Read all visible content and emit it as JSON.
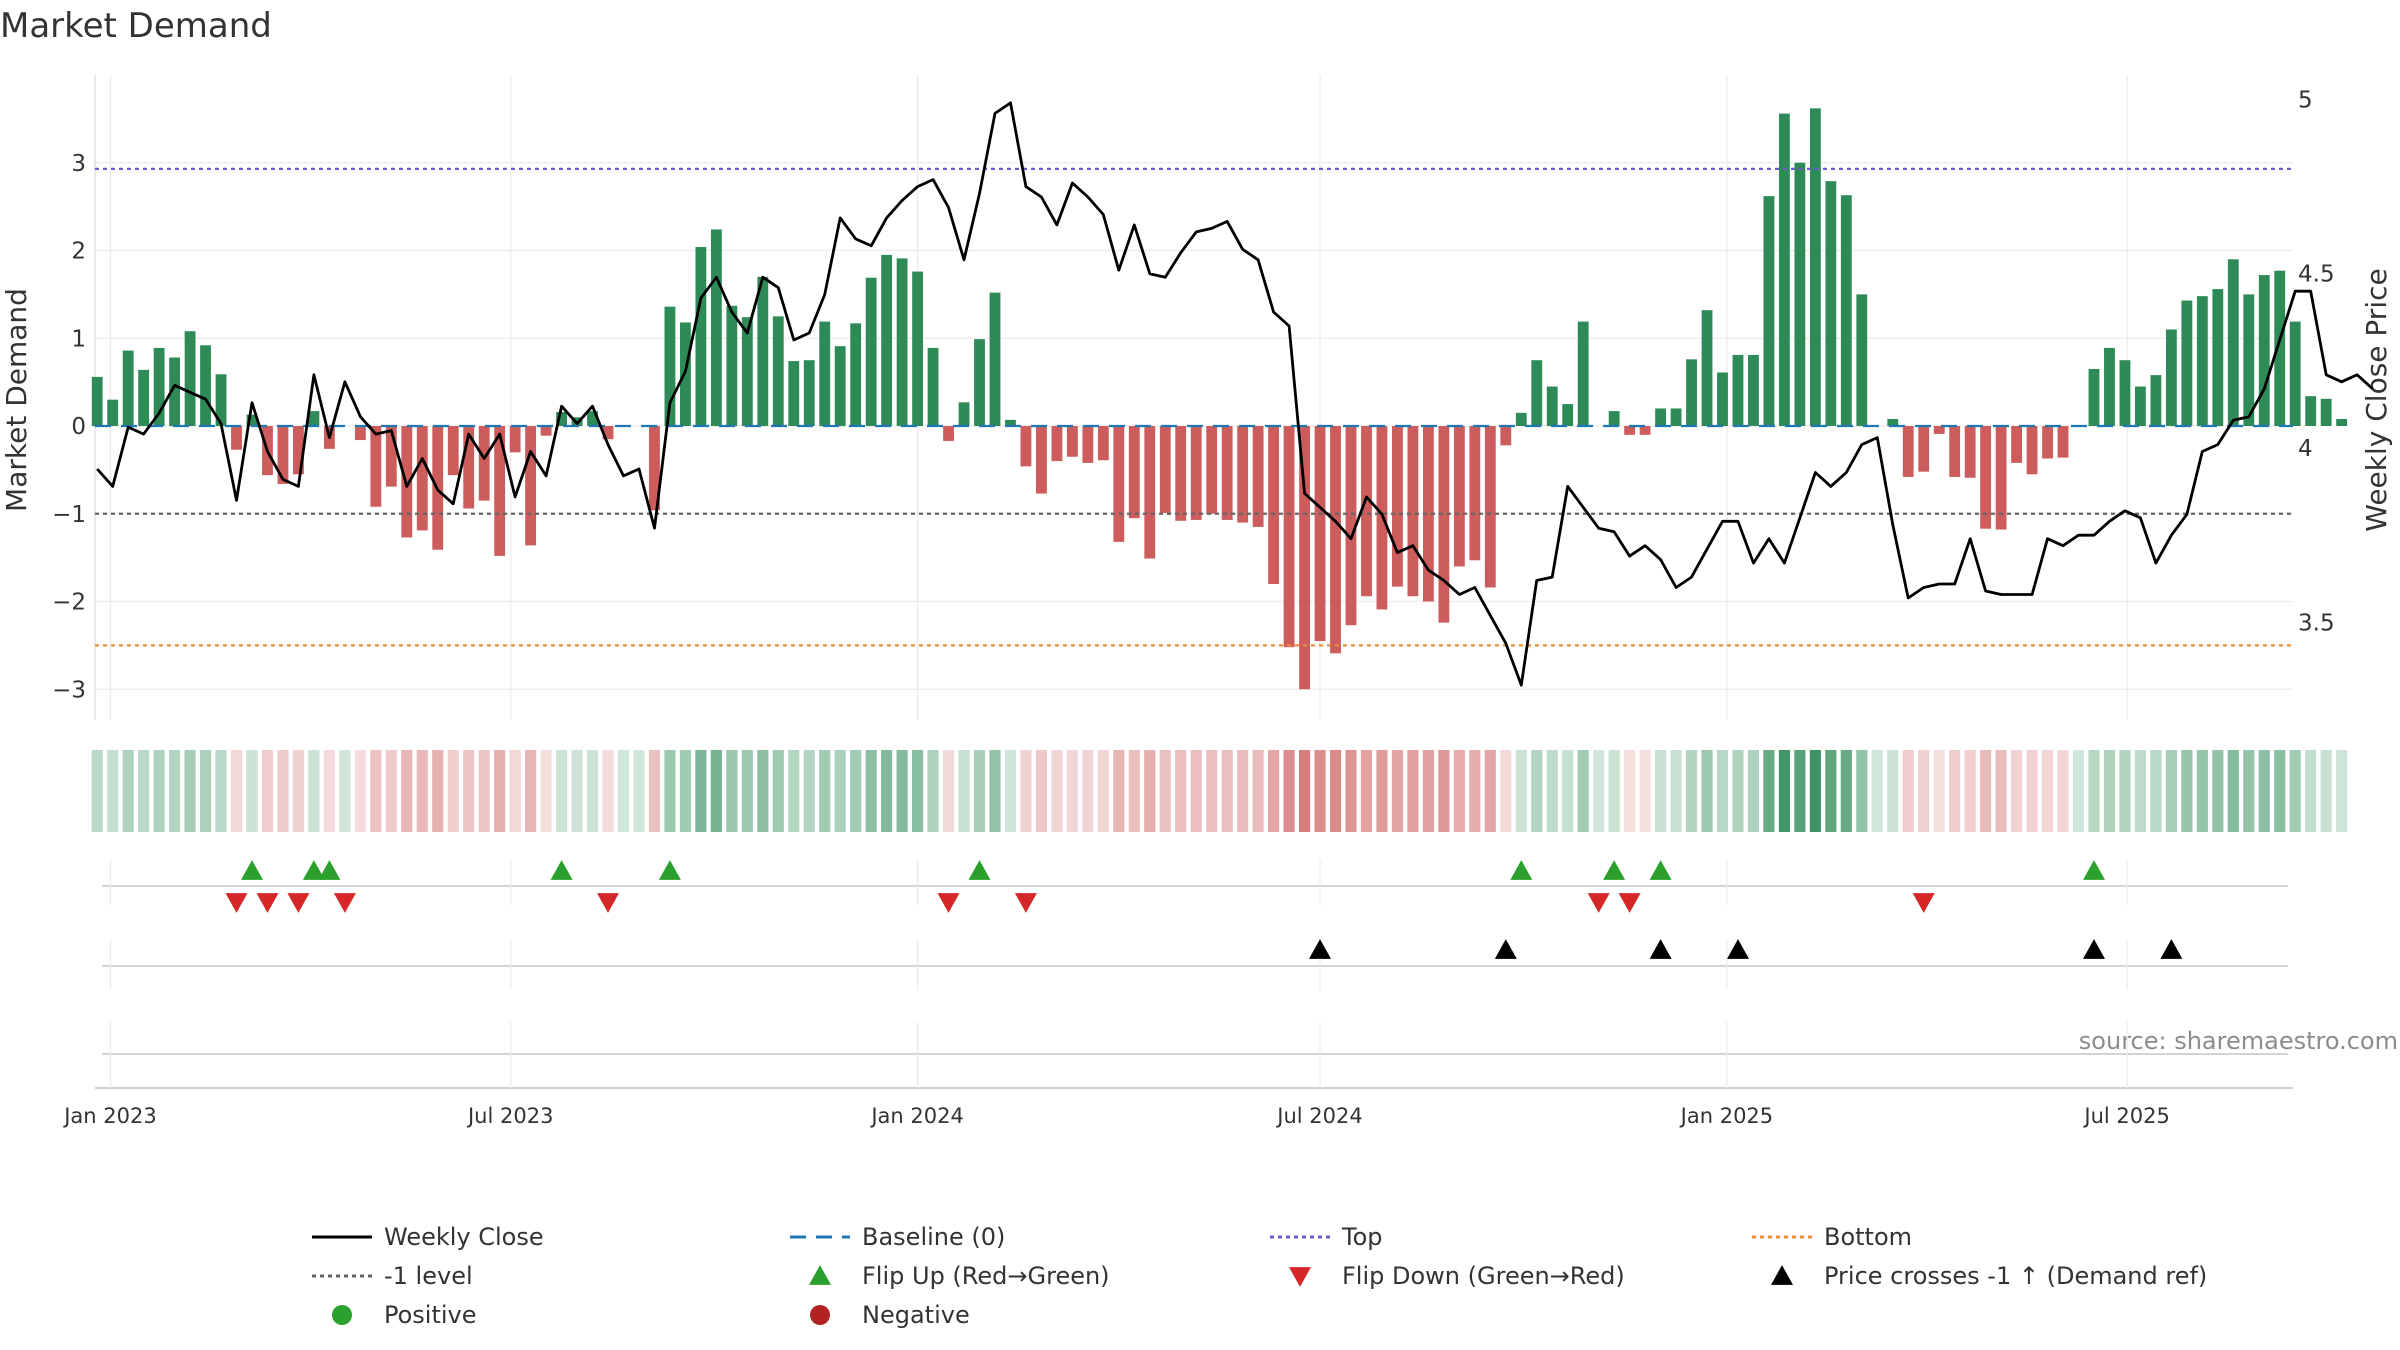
{
  "colors": {
    "pos_bar": "#2e8b57",
    "neg_bar": "#cd5c5c",
    "price_line": "#000000",
    "baseline": "#1f77b4",
    "top_line": "#6a5acd",
    "bottom_line": "#e69138",
    "neg_one": "#666666",
    "flip_up": "#2ca02c",
    "flip_down": "#d62728",
    "cross": "#000000",
    "positive_dot": "#2ca02c",
    "negative_dot": "#b22222"
  },
  "chart_data": {
    "type": "bar",
    "title": "Market Demand",
    "ylabel_left": "Market Demand",
    "ylabel_right": "Weekly Close Price",
    "source": "source: sharemaestro.com",
    "ylim_left": [
      -3.35,
      4.0
    ],
    "yticks_left": [
      3,
      2,
      1,
      0,
      -1,
      -2,
      -3
    ],
    "ytick_labels_left": [
      "3",
      "2",
      "1",
      "0",
      "−1",
      "−2",
      "−3"
    ],
    "ylim_right": [
      3.22,
      5.07
    ],
    "yticks_right": [
      5,
      4.5,
      4,
      3.5
    ],
    "ytick_labels_right": [
      "5",
      "4.5",
      "4",
      "3.5"
    ],
    "x_start": "2022-12-25",
    "x_end": "2025-09-14",
    "xticks": [
      {
        "date": "2023-01-01",
        "label": "Jan 2023"
      },
      {
        "date": "2023-07-01",
        "label": "Jul 2023"
      },
      {
        "date": "2024-01-01",
        "label": "Jan 2024"
      },
      {
        "date": "2024-07-01",
        "label": "Jul 2024"
      },
      {
        "date": "2025-01-01",
        "label": "Jan 2025"
      },
      {
        "date": "2025-07-01",
        "label": "Jul 2025"
      }
    ],
    "first_week": "2022-12-26",
    "levels": {
      "top": 2.93,
      "bottom": -2.5,
      "neg_one": -1.0,
      "baseline": 0
    },
    "demand": [
      0.56,
      0.3,
      0.86,
      0.64,
      0.89,
      0.78,
      1.08,
      0.92,
      0.59,
      -0.27,
      0.13,
      -0.56,
      -0.66,
      -0.55,
      0.17,
      -0.26,
      0,
      -0.16,
      -0.92,
      -0.69,
      -1.27,
      -1.19,
      -1.41,
      -0.56,
      -0.94,
      -0.85,
      -1.48,
      -0.3,
      -1.36,
      -0.11,
      0.16,
      0.1,
      0.17,
      -0.15,
      0,
      0,
      -0.96,
      1.36,
      1.18,
      2.04,
      2.24,
      1.37,
      1.24,
      1.7,
      1.25,
      0.74,
      0.75,
      1.19,
      0.91,
      1.17,
      1.69,
      1.95,
      1.91,
      1.76,
      0.89,
      -0.17,
      0.27,
      0.99,
      1.52,
      0.07,
      -0.46,
      -0.77,
      -0.4,
      -0.35,
      -0.42,
      -0.39,
      -1.32,
      -1.05,
      -1.51,
      -0.99,
      -1.08,
      -1.07,
      -1.0,
      -1.07,
      -1.1,
      -1.15,
      -1.8,
      -2.52,
      -3.0,
      -2.45,
      -2.59,
      -2.27,
      -1.94,
      -2.09,
      -1.83,
      -1.94,
      -2.0,
      -2.24,
      -1.6,
      -1.53,
      -1.84,
      -0.22,
      0.15,
      0.75,
      0.45,
      0.25,
      1.19,
      0,
      0.17,
      -0.1,
      -0.1,
      0.2,
      0.2,
      0.76,
      1.32,
      0.61,
      0.81,
      0.81,
      2.62,
      3.56,
      3.0,
      3.62,
      2.79,
      2.63,
      1.5,
      0,
      0.08,
      -0.58,
      -0.52,
      -0.09,
      -0.58,
      -0.59,
      -1.17,
      -1.18,
      -0.42,
      -0.55,
      -0.37,
      -0.36,
      0,
      0.65,
      0.89,
      0.75,
      0.45,
      0.58,
      1.1,
      1.43,
      1.48,
      1.56,
      1.9,
      1.5,
      1.72,
      1.77,
      1.19,
      0.34,
      0.31,
      0.08
    ],
    "price": [
      3.94,
      3.89,
      4.06,
      4.04,
      4.1,
      4.18,
      4.16,
      4.14,
      4.07,
      3.85,
      4.13,
      3.99,
      3.91,
      3.89,
      4.21,
      4.03,
      4.19,
      4.09,
      4.04,
      4.05,
      3.89,
      3.97,
      3.88,
      3.84,
      4.04,
      3.97,
      4.04,
      3.86,
      3.99,
      3.92,
      4.12,
      4.07,
      4.12,
      4.01,
      3.92,
      3.94,
      3.77,
      4.13,
      4.22,
      4.43,
      4.49,
      4.39,
      4.33,
      4.49,
      4.46,
      4.31,
      4.33,
      4.44,
      4.66,
      4.6,
      4.58,
      4.66,
      4.71,
      4.75,
      4.77,
      4.69,
      4.54,
      4.73,
      4.96,
      4.99,
      4.75,
      4.72,
      4.64,
      4.76,
      4.72,
      4.67,
      4.51,
      4.64,
      4.5,
      4.49,
      4.56,
      4.62,
      4.63,
      4.65,
      4.57,
      4.54,
      4.39,
      4.35,
      3.87,
      3.83,
      3.79,
      3.74,
      3.86,
      3.81,
      3.7,
      3.72,
      3.65,
      3.62,
      3.58,
      3.6,
      3.52,
      3.44,
      3.32,
      3.62,
      3.63,
      3.89,
      3.83,
      3.77,
      3.76,
      3.69,
      3.72,
      3.68,
      3.6,
      3.63,
      3.71,
      3.79,
      3.79,
      3.67,
      3.74,
      3.67,
      3.8,
      3.93,
      3.89,
      3.93,
      4.01,
      4.03,
      3.78,
      3.57,
      3.6,
      3.61,
      3.61,
      3.74,
      3.59,
      3.58,
      3.58,
      3.58,
      3.74,
      3.72,
      3.75,
      3.75,
      3.79,
      3.82,
      3.8,
      3.67,
      3.75,
      3.81,
      3.99,
      4.01,
      4.08,
      4.09,
      4.17,
      4.31,
      4.45,
      4.45,
      4.21,
      4.19,
      4.21,
      4.17
    ],
    "flip_up_weeks": [
      10,
      14,
      15,
      30,
      37,
      57,
      92,
      98,
      101,
      129
    ],
    "flip_down_weeks": [
      9,
      11,
      13,
      16,
      33,
      55,
      60,
      97,
      99,
      118
    ],
    "cross_weeks": [
      79,
      91,
      101,
      106,
      129,
      134
    ],
    "legend": [
      {
        "label": "Weekly Close",
        "kind": "line",
        "color_key": "price_line",
        "dash": ""
      },
      {
        "label": "Baseline (0)",
        "kind": "line",
        "color_key": "baseline",
        "dash": "16,10"
      },
      {
        "label": "Top",
        "kind": "line",
        "color_key": "top_line",
        "dash": "4,4"
      },
      {
        "label": "Bottom",
        "kind": "line",
        "color_key": "bottom_line",
        "dash": "4,4"
      },
      {
        "label": "-1 level",
        "kind": "line",
        "color_key": "neg_one",
        "dash": "4,4"
      },
      {
        "label": "Flip Up (Red→Green)",
        "kind": "up",
        "color_key": "flip_up",
        "dash": ""
      },
      {
        "label": "Flip Down (Green→Red)",
        "kind": "down",
        "color_key": "flip_down",
        "dash": ""
      },
      {
        "label": "Price crosses -1 ↑ (Demand ref)",
        "kind": "up",
        "color_key": "cross",
        "dash": ""
      },
      {
        "label": "Positive",
        "kind": "dot",
        "color_key": "positive_dot",
        "dash": ""
      },
      {
        "label": "Negative",
        "kind": "dot",
        "color_key": "negative_dot",
        "dash": ""
      }
    ]
  }
}
